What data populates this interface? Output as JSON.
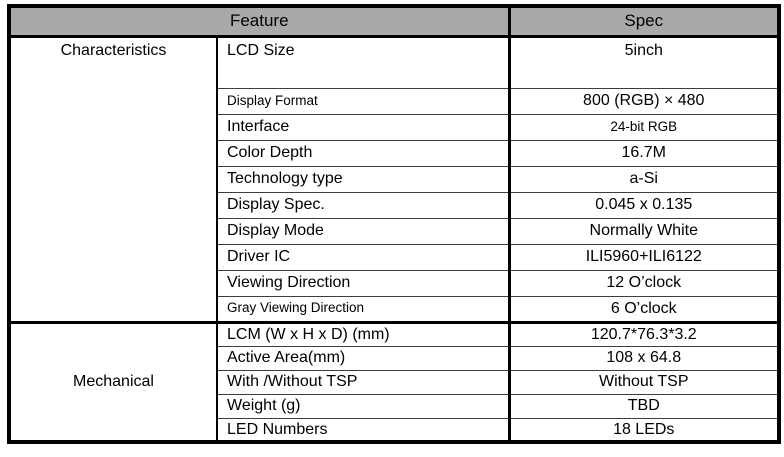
{
  "header": {
    "feature_label": "Feature",
    "spec_label": "Spec"
  },
  "sections": [
    {
      "group_label": "Characteristics",
      "rows": [
        {
          "feature": "LCD Size",
          "spec": "5inch"
        },
        {
          "feature": "Display Format",
          "spec": "800 (RGB) × 480"
        },
        {
          "feature": "Interface",
          "spec": "24-bit RGB"
        },
        {
          "feature": "Color Depth",
          "spec": "16.7M"
        },
        {
          "feature": "Technology type",
          "spec": "a-Si"
        },
        {
          "feature": "Display Spec.",
          "spec": "0.045 x 0.135"
        },
        {
          "feature": "Display Mode",
          "spec": "Normally White"
        },
        {
          "feature": "Driver IC",
          "spec": "ILI5960+ILI6122"
        },
        {
          "feature": "Viewing Direction",
          "spec": "12 O’clock"
        },
        {
          "feature": "Gray Viewing Direction",
          "spec": "6 O’clock"
        }
      ]
    },
    {
      "group_label": "Mechanical",
      "rows": [
        {
          "feature": "LCM (W x H x D) (mm)",
          "spec": "120.7*76.3*3.2"
        },
        {
          "feature": "Active Area(mm)",
          "spec": "108 x 64.8"
        },
        {
          "feature": "With /Without TSP",
          "spec": "Without TSP"
        },
        {
          "feature": "Weight (g)",
          "spec": "TBD"
        },
        {
          "feature": "LED Numbers",
          "spec": "18 LEDs"
        }
      ]
    }
  ],
  "colors": {
    "header_bg": "#a9a9a9",
    "border": "#000000",
    "thin_line": "#3d3d3d",
    "text": "#000000"
  }
}
